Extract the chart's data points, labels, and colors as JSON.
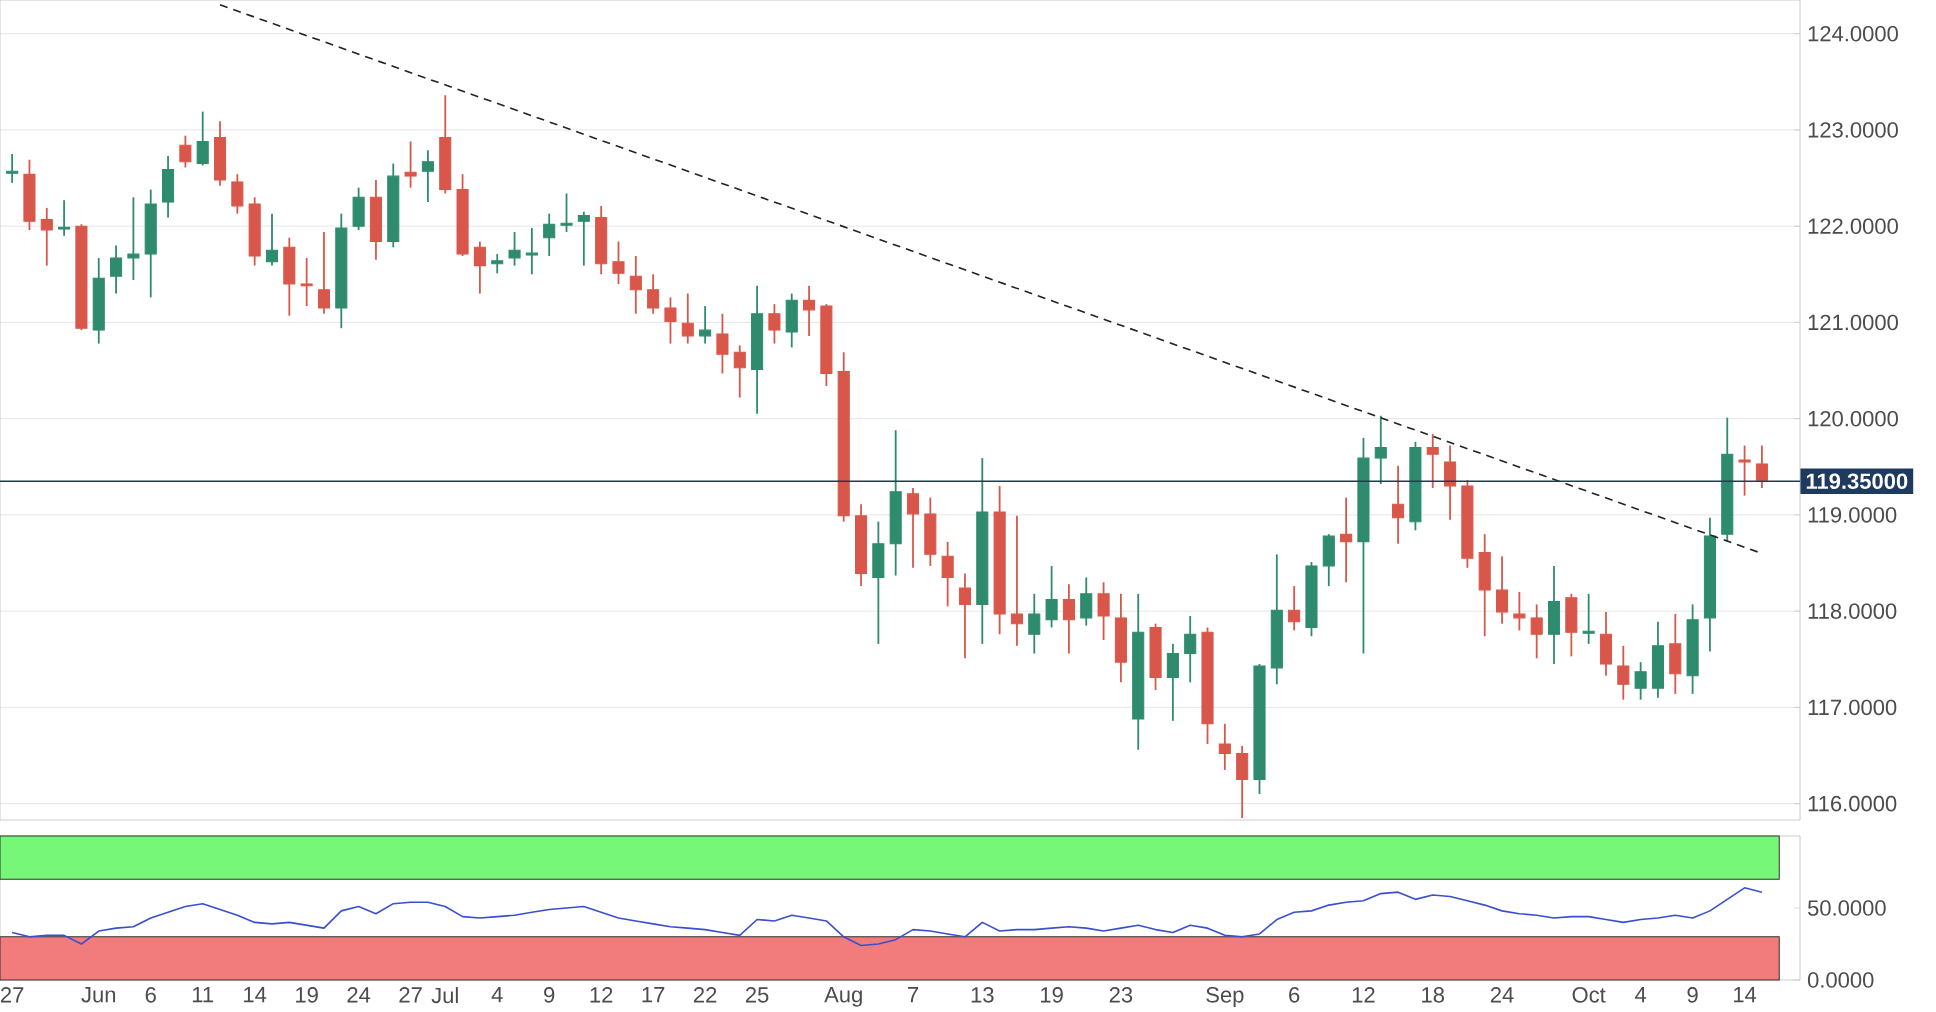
{
  "chart_data": [
    {
      "type": "candlestick",
      "categories": [
        null,
        null,
        null,
        null,
        null,
        null,
        null,
        null,
        null,
        null,
        null,
        null,
        null,
        null,
        null,
        null,
        null,
        null,
        null,
        null,
        null,
        null,
        null,
        null,
        null,
        null,
        null,
        null,
        null,
        null,
        null,
        null,
        null,
        null,
        null,
        null,
        null,
        null,
        null,
        null,
        null,
        null,
        null,
        null,
        null,
        null,
        null,
        null,
        null,
        null,
        null,
        null,
        null,
        null,
        null,
        null,
        null,
        null,
        null,
        null,
        null,
        null,
        null,
        null,
        null,
        null,
        null,
        null,
        null,
        null,
        null,
        null,
        null,
        null,
        null,
        null,
        null,
        null,
        null,
        null,
        null,
        null,
        null,
        null,
        null,
        null,
        null,
        null,
        null,
        null,
        null,
        null,
        null,
        null,
        null,
        null,
        null,
        null,
        null,
        null,
        null,
        null
      ],
      "ohlc": [
        [
          122.55,
          122.75,
          122.45,
          122.57
        ],
        [
          122.54,
          122.69,
          121.96,
          122.05
        ],
        [
          122.07,
          122.19,
          121.59,
          121.96
        ],
        [
          121.97,
          122.27,
          121.9,
          121.99
        ],
        [
          122.0,
          122.02,
          120.92,
          120.94
        ],
        [
          120.92,
          121.67,
          120.78,
          121.46
        ],
        [
          121.48,
          121.8,
          121.3,
          121.67
        ],
        [
          121.67,
          122.3,
          121.44,
          121.71
        ],
        [
          121.71,
          122.38,
          121.26,
          122.23
        ],
        [
          122.25,
          122.73,
          122.09,
          122.59
        ],
        [
          122.84,
          122.94,
          122.61,
          122.67
        ],
        [
          122.65,
          123.19,
          122.63,
          122.88
        ],
        [
          122.92,
          123.09,
          122.42,
          122.48
        ],
        [
          122.46,
          122.54,
          122.13,
          122.21
        ],
        [
          122.23,
          122.3,
          121.59,
          121.69
        ],
        [
          121.63,
          122.13,
          121.59,
          121.75
        ],
        [
          121.78,
          121.88,
          121.07,
          121.4
        ],
        [
          121.4,
          121.67,
          121.17,
          121.38
        ],
        [
          121.34,
          121.94,
          121.09,
          121.15
        ],
        [
          121.15,
          122.13,
          120.94,
          121.98
        ],
        [
          122.0,
          122.4,
          121.96,
          122.3
        ],
        [
          122.3,
          122.48,
          121.65,
          121.84
        ],
        [
          121.84,
          122.65,
          121.78,
          122.52
        ],
        [
          122.56,
          122.88,
          122.4,
          122.52
        ],
        [
          122.57,
          122.79,
          122.25,
          122.67
        ],
        [
          122.92,
          123.36,
          122.34,
          122.38
        ],
        [
          122.38,
          122.54,
          121.69,
          121.71
        ],
        [
          121.78,
          121.84,
          121.3,
          121.59
        ],
        [
          121.61,
          121.71,
          121.51,
          121.64
        ],
        [
          121.67,
          121.94,
          121.59,
          121.75
        ],
        [
          121.7,
          121.98,
          121.5,
          121.72
        ],
        [
          121.88,
          122.13,
          121.69,
          122.02
        ],
        [
          122.01,
          122.34,
          121.94,
          122.03
        ],
        [
          122.05,
          122.15,
          121.59,
          122.11
        ],
        [
          122.09,
          122.21,
          121.5,
          121.61
        ],
        [
          121.63,
          121.84,
          121.4,
          121.51
        ],
        [
          121.48,
          121.69,
          121.09,
          121.34
        ],
        [
          121.34,
          121.5,
          121.09,
          121.15
        ],
        [
          121.15,
          121.26,
          120.78,
          121.01
        ],
        [
          120.99,
          121.3,
          120.78,
          120.86
        ],
        [
          120.86,
          121.17,
          120.78,
          120.92
        ],
        [
          120.88,
          121.09,
          120.47,
          120.67
        ],
        [
          120.69,
          120.76,
          120.22,
          120.53
        ],
        [
          120.51,
          121.38,
          120.05,
          121.09
        ],
        [
          121.09,
          121.19,
          120.78,
          120.92
        ],
        [
          120.9,
          121.3,
          120.74,
          121.23
        ],
        [
          121.23,
          121.38,
          120.86,
          121.13
        ],
        [
          121.17,
          121.19,
          120.34,
          120.47
        ],
        [
          120.49,
          120.69,
          118.93,
          118.99
        ],
        [
          118.99,
          119.11,
          118.26,
          118.39
        ],
        [
          118.35,
          118.93,
          117.66,
          118.7
        ],
        [
          118.7,
          119.88,
          118.37,
          119.24
        ],
        [
          119.22,
          119.28,
          118.45,
          119.01
        ],
        [
          119.01,
          119.18,
          118.47,
          118.59
        ],
        [
          118.57,
          118.72,
          118.05,
          118.35
        ],
        [
          118.24,
          118.39,
          117.51,
          118.07
        ],
        [
          118.07,
          119.59,
          117.66,
          119.03
        ],
        [
          119.03,
          119.3,
          117.76,
          117.97
        ],
        [
          117.97,
          118.99,
          117.64,
          117.87
        ],
        [
          117.76,
          118.18,
          117.56,
          117.97
        ],
        [
          117.91,
          118.47,
          117.83,
          118.12
        ],
        [
          118.12,
          118.28,
          117.56,
          117.91
        ],
        [
          117.93,
          118.35,
          117.85,
          118.18
        ],
        [
          118.18,
          118.3,
          117.7,
          117.95
        ],
        [
          117.93,
          118.18,
          117.26,
          117.47
        ],
        [
          116.88,
          118.18,
          116.56,
          117.78
        ],
        [
          117.83,
          117.87,
          117.18,
          117.31
        ],
        [
          117.31,
          117.66,
          116.86,
          117.56
        ],
        [
          117.56,
          117.95,
          117.26,
          117.76
        ],
        [
          117.78,
          117.83,
          116.62,
          116.83
        ],
        [
          116.62,
          116.83,
          116.35,
          116.52
        ],
        [
          116.52,
          116.6,
          115.85,
          116.25
        ],
        [
          116.25,
          117.45,
          116.1,
          117.43
        ],
        [
          117.41,
          118.59,
          117.24,
          118.01
        ],
        [
          118.01,
          118.26,
          117.8,
          117.89
        ],
        [
          117.83,
          118.51,
          117.74,
          118.47
        ],
        [
          118.47,
          118.8,
          118.26,
          118.78
        ],
        [
          118.8,
          119.18,
          118.3,
          118.72
        ],
        [
          118.72,
          119.8,
          117.56,
          119.59
        ],
        [
          119.59,
          120.03,
          119.32,
          119.7
        ],
        [
          119.11,
          119.51,
          118.7,
          118.97
        ],
        [
          118.93,
          119.76,
          118.84,
          119.7
        ],
        [
          119.7,
          119.84,
          119.28,
          119.63
        ],
        [
          119.55,
          119.72,
          118.95,
          119.3
        ],
        [
          119.3,
          119.36,
          118.45,
          118.55
        ],
        [
          118.61,
          118.8,
          117.74,
          118.22
        ],
        [
          118.22,
          118.57,
          117.87,
          117.99
        ],
        [
          117.97,
          118.2,
          117.8,
          117.93
        ],
        [
          117.93,
          118.07,
          117.51,
          117.76
        ],
        [
          117.76,
          118.47,
          117.45,
          118.1
        ],
        [
          118.14,
          118.18,
          117.53,
          117.78
        ],
        [
          117.77,
          118.18,
          117.66,
          117.79
        ],
        [
          117.76,
          117.99,
          117.33,
          117.45
        ],
        [
          117.43,
          117.64,
          117.08,
          117.24
        ],
        [
          117.2,
          117.47,
          117.08,
          117.37
        ],
        [
          117.2,
          117.89,
          117.1,
          117.64
        ],
        [
          117.66,
          117.97,
          117.14,
          117.35
        ],
        [
          117.33,
          118.07,
          117.14,
          117.91
        ],
        [
          117.93,
          118.97,
          117.58,
          118.78
        ],
        [
          118.8,
          120.01,
          118.72,
          119.63
        ],
        [
          119.57,
          119.72,
          119.2,
          119.55
        ],
        [
          119.53,
          119.72,
          119.28,
          119.36
        ]
      ],
      "series": [
        {
          "type": "line",
          "line_style": "dashed",
          "color": "#222222",
          "values": [
            null,
            null,
            null,
            null,
            null,
            null,
            null,
            null,
            null,
            null,
            null,
            null,
            124.3,
            null,
            null,
            null,
            null,
            null,
            null,
            null,
            null,
            null,
            null,
            null,
            null,
            null,
            null,
            null,
            null,
            null,
            null,
            null,
            null,
            null,
            null,
            null,
            null,
            null,
            null,
            null,
            null,
            null,
            null,
            null,
            null,
            null,
            null,
            null,
            null,
            null,
            null,
            null,
            null,
            null,
            null,
            null,
            null,
            null,
            null,
            null,
            null,
            null,
            null,
            null,
            null,
            null,
            null,
            null,
            null,
            null,
            null,
            null,
            null,
            null,
            null,
            null,
            null,
            null,
            null,
            null,
            null,
            null,
            null,
            null,
            null,
            null,
            null,
            null,
            null,
            null,
            null,
            null,
            null,
            null,
            null,
            null,
            null,
            null,
            null,
            null,
            null,
            118.6
          ]
        }
      ],
      "ref_lines": [
        {
          "axis": "y",
          "value": 119.35,
          "label": "119.35000",
          "color": "#1e3a5f"
        }
      ],
      "ylim": [
        115.83,
        124.35
      ],
      "yticks": [
        {
          "value": 116,
          "label": "116.0000"
        },
        {
          "value": 117,
          "label": "117.0000"
        },
        {
          "value": 118,
          "label": "118.0000"
        },
        {
          "value": 119,
          "label": "119.0000"
        },
        {
          "value": 120,
          "label": "120.0000"
        },
        {
          "value": 121,
          "label": "121.0000"
        },
        {
          "value": 122,
          "label": "122.0000"
        },
        {
          "value": 123,
          "label": "123.0000"
        },
        {
          "value": 124,
          "label": "124.0000"
        }
      ],
      "grid": "y",
      "tick_labels": "y"
    },
    {
      "type": "line",
      "categories": [
        "27",
        null,
        null,
        null,
        null,
        "Jun",
        null,
        null,
        "6",
        null,
        null,
        "11",
        null,
        null,
        "14",
        null,
        null,
        "19",
        null,
        null,
        "24",
        null,
        null,
        "27",
        null,
        "Jul",
        null,
        null,
        "4",
        null,
        null,
        "9",
        null,
        null,
        "12",
        null,
        null,
        "17",
        null,
        null,
        "22",
        null,
        null,
        "25",
        null,
        null,
        null,
        null,
        "Aug",
        null,
        null,
        null,
        "7",
        null,
        null,
        null,
        "13",
        null,
        null,
        null,
        "19",
        null,
        null,
        null,
        "23",
        null,
        null,
        null,
        null,
        null,
        "Sep",
        null,
        null,
        null,
        "6",
        null,
        null,
        null,
        "12",
        null,
        null,
        null,
        "18",
        null,
        null,
        null,
        "24",
        null,
        null,
        null,
        null,
        "Oct",
        null,
        null,
        "4",
        null,
        null,
        "9",
        null,
        null,
        "14",
        null
      ],
      "series": [
        {
          "color": "#3a4fd0",
          "values": [
            33,
            30,
            31,
            31,
            25,
            34,
            36,
            37,
            43,
            47,
            51,
            53,
            49,
            45,
            40,
            39,
            40,
            38,
            36,
            48,
            51,
            46,
            53,
            54,
            54,
            51,
            44,
            43,
            44,
            45,
            47,
            49,
            50,
            51,
            47,
            43,
            41,
            39,
            37,
            36,
            35,
            33,
            31,
            42,
            41,
            45,
            43,
            41,
            30,
            24,
            25,
            28,
            35,
            34,
            32,
            30,
            40,
            34,
            35,
            35,
            36,
            37,
            36,
            34,
            36,
            38,
            35,
            33,
            38,
            36,
            31,
            30,
            32,
            42,
            47,
            48,
            52,
            54,
            55,
            60,
            61,
            56,
            59,
            58,
            55,
            52,
            48,
            46,
            45,
            43,
            44,
            44,
            42,
            40,
            42,
            43,
            45,
            43,
            48,
            56,
            64,
            61
          ]
        }
      ],
      "bands": [
        {
          "axis": "y",
          "from": 70,
          "to": 100,
          "color": "#77f777"
        },
        {
          "axis": "y",
          "from": 0,
          "to": 30,
          "color": "#f27c7c"
        }
      ],
      "ylim": [
        0,
        100
      ],
      "yticks": [
        {
          "value": 0,
          "label": "0.0000"
        },
        {
          "value": 50,
          "label": "50.0000"
        }
      ]
    }
  ]
}
